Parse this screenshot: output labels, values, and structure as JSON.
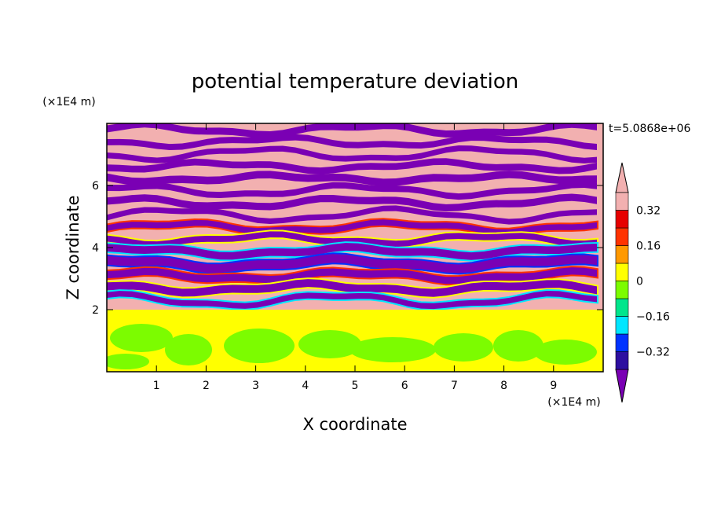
{
  "chart_data": {
    "type": "heatmap",
    "title": "potential temperature deviation",
    "xlabel": "X coordinate",
    "ylabel": "Z coordinate",
    "x_unit": "(×1E4 m)",
    "y_unit": "(×1E4 m)",
    "time_label": "t=5.0868e+06",
    "xlim": [
      0,
      10
    ],
    "ylim": [
      0,
      8
    ],
    "x_ticks": [
      "1",
      "2",
      "3",
      "4",
      "5",
      "6",
      "7",
      "8",
      "9"
    ],
    "y_ticks": [
      "2",
      "4",
      "6"
    ],
    "interface_z": 2,
    "lower_layer": {
      "description_values": "mostly near 0, between -0.08 and 0.08",
      "background_level": 0.04,
      "patch_level": -0.04
    },
    "upper_layer_band_levels": [
      0.44,
      -0.44
    ],
    "colorbar": {
      "tick_labels": [
        "0.32",
        "0.16",
        "0",
        "−0.16",
        "−0.32"
      ],
      "tick_values": [
        0.32,
        0.16,
        0,
        -0.16,
        -0.32
      ],
      "levels": [
        -0.4,
        -0.32,
        -0.24,
        -0.16,
        -0.08,
        0,
        0.08,
        0.16,
        0.24,
        0.32,
        0.4
      ],
      "colors": [
        "#7a00b4",
        "#2d0fa0",
        "#0033ff",
        "#00e6ff",
        "#00e68c",
        "#7cfc00",
        "#ffff00",
        "#ff9900",
        "#ff3300",
        "#e60000",
        "#f2b0b0"
      ],
      "extend": "both"
    }
  }
}
